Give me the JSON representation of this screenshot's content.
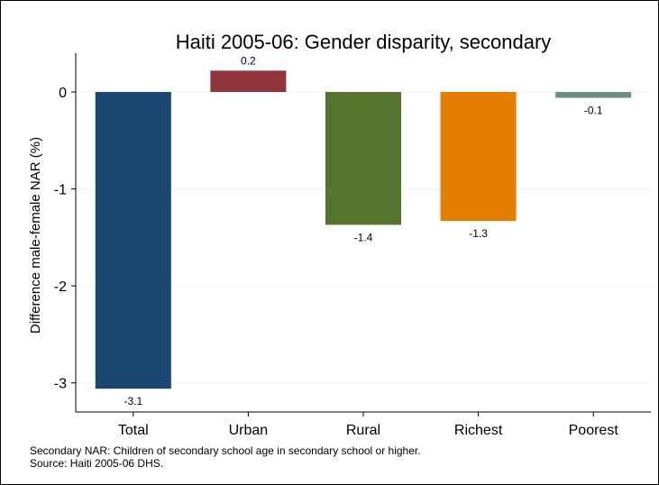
{
  "chart_data": {
    "type": "bar",
    "title": "Haiti 2005-06: Gender disparity, secondary",
    "xlabel": "",
    "ylabel": "Difference male-female NAR (%)",
    "categories": [
      "Total",
      "Urban",
      "Rural",
      "Richest",
      "Poorest"
    ],
    "values": [
      -3.06,
      0.22,
      -1.37,
      -1.33,
      -0.06
    ],
    "value_labels": [
      "-3.1",
      "0.2",
      "-1.4",
      "-1.3",
      "-0.1"
    ],
    "colors": [
      "#1a476f",
      "#90353b",
      "#55752f",
      "#e37e00",
      "#6e8e84"
    ],
    "ylim": [
      -3.3,
      0.4
    ],
    "yticks": [
      0,
      -1,
      -2,
      -3
    ],
    "ytick_labels": [
      "0",
      "-1",
      "-2",
      "-3"
    ],
    "grid": true,
    "legend": "none"
  },
  "notes": {
    "line1": "Secondary NAR: Children of secondary school age in secondary school or higher.",
    "line2": "Source: Haiti 2005-06 DHS."
  }
}
